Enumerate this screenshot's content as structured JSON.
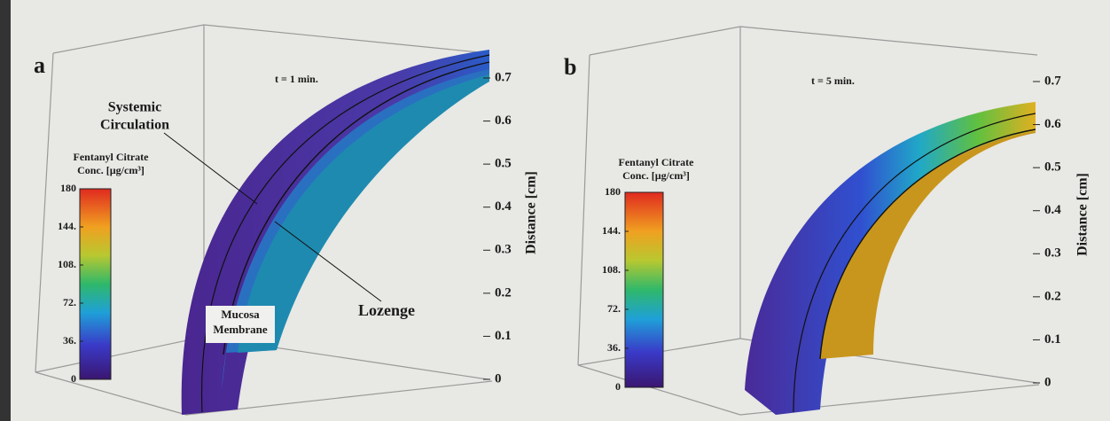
{
  "chart_data": [
    {
      "type": "surface3d",
      "panel_label": "a",
      "time_label": "t = 1 min.",
      "zlabel": "Distance [cm]",
      "zlim": [
        0,
        0.7
      ],
      "zticks": [
        0,
        0.1,
        0.2,
        0.3,
        0.4,
        0.5,
        0.6,
        0.7
      ],
      "colorbar": {
        "title": [
          "Fentanyl Citrate",
          "Conc. [µg/cm³]"
        ],
        "lim": [
          0,
          180
        ],
        "ticks": [
          0,
          {
            "value": 36,
            "label": "36."
          },
          {
            "value": 72,
            "label": "72."
          },
          {
            "value": 108,
            "label": "108."
          },
          {
            "value": 144,
            "label": "144."
          },
          180
        ]
      },
      "annotations": {
        "systemic": [
          "Systemic",
          "Circulation"
        ],
        "lozenge": "Lozenge",
        "mucosa": [
          "Mucosa",
          "Membrane"
        ]
      }
    },
    {
      "type": "surface3d",
      "panel_label": "b",
      "time_label": "t = 5 min.",
      "zlabel": "Distance [cm]",
      "zlim": [
        0,
        0.7
      ],
      "zticks": [
        0,
        0.1,
        0.2,
        0.3,
        0.4,
        0.5,
        0.6,
        0.7
      ],
      "colorbar": {
        "title": [
          "Fentanyl Citrate",
          "Conc. [µg/cm³]"
        ],
        "lim": [
          0,
          180
        ],
        "ticks": [
          0,
          {
            "value": 36,
            "label": "36."
          },
          {
            "value": 72,
            "label": "72."
          },
          {
            "value": 108,
            "label": "108."
          },
          {
            "value": 144,
            "label": "144."
          },
          180
        ]
      }
    }
  ]
}
